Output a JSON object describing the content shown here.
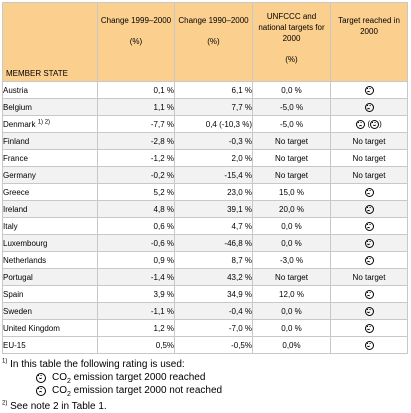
{
  "headers": {
    "member_state": "MEMBER STATE",
    "col2": {
      "title": "Change 1999–2000",
      "unit": "(%)"
    },
    "col3": {
      "title": "Change 1990–2000",
      "unit": "(%)"
    },
    "col4": {
      "title": "UNFCCC and national targets for 2000",
      "unit": "(%)"
    },
    "col5": {
      "title": "Target reached in 2000"
    }
  },
  "rows": [
    {
      "country": "Austria",
      "sup": "",
      "c1": "0,1 %",
      "c2": "6,1 %",
      "c3": "0,0 %",
      "c4_text": "",
      "c4_icon": "sad"
    },
    {
      "country": "Belgium",
      "sup": "",
      "c1": "1,1 %",
      "c2": "7,7 %",
      "c3": "-5,0 %",
      "c4_text": "",
      "c4_icon": "sad"
    },
    {
      "country": "Denmark",
      "sup": "1) 2)",
      "c1": "-7,7 %",
      "c2": "0,4 (-10,3 %)",
      "c3": "-5,0 %",
      "c4_text": "",
      "c4_icon": "sad-happy"
    },
    {
      "country": "Finland",
      "sup": "",
      "c1": "-2,8 %",
      "c2": "-0,3 %",
      "c3": "No target",
      "c4_text": "No target",
      "c4_icon": ""
    },
    {
      "country": "France",
      "sup": "",
      "c1": "-1,2 %",
      "c2": "2,0 %",
      "c3": "No target",
      "c4_text": "No target",
      "c4_icon": ""
    },
    {
      "country": "Germany",
      "sup": "",
      "c1": "-0,2 %",
      "c2": "-15,4 %",
      "c3": "No target",
      "c4_text": "No target",
      "c4_icon": ""
    },
    {
      "country": "Greece",
      "sup": "",
      "c1": "5,2 %",
      "c2": "23,0 %",
      "c3": "15,0 %",
      "c4_text": "",
      "c4_icon": "sad"
    },
    {
      "country": "Ireland",
      "sup": "",
      "c1": "4,8 %",
      "c2": "39,1 %",
      "c3": "20,0 %",
      "c4_text": "",
      "c4_icon": "sad"
    },
    {
      "country": "Italy",
      "sup": "",
      "c1": "0,6 %",
      "c2": "4,7 %",
      "c3": "0,0 %",
      "c4_text": "",
      "c4_icon": "sad"
    },
    {
      "country": "Luxembourg",
      "sup": "",
      "c1": "-0,6 %",
      "c2": "-46,8 %",
      "c3": "0,0 %",
      "c4_text": "",
      "c4_icon": "happy"
    },
    {
      "country": "Netherlands",
      "sup": "",
      "c1": "0,9 %",
      "c2": "8,7 %",
      "c3": "-3,0 %",
      "c4_text": "",
      "c4_icon": "sad"
    },
    {
      "country": "Portugal",
      "sup": "",
      "c1": "-1,4 %",
      "c2": "43,2 %",
      "c3": "No target",
      "c4_text": "No target",
      "c4_icon": ""
    },
    {
      "country": "Spain",
      "sup": "",
      "c1": "3,9 %",
      "c2": "34,9 %",
      "c3": "12,0 %",
      "c4_text": "",
      "c4_icon": "sad"
    },
    {
      "country": "Sweden",
      "sup": "",
      "c1": "-1,1 %",
      "c2": "-0,4 %",
      "c3": "0,0 %",
      "c4_text": "",
      "c4_icon": "happy"
    },
    {
      "country": "United Kingdom",
      "sup": "",
      "c1": "1,2 %",
      "c2": "-7,0 %",
      "c3": "0,0 %",
      "c4_text": "",
      "c4_icon": "happy"
    },
    {
      "country": "EU-15",
      "sup": "",
      "c1": "0,5%",
      "c2": "-0,5%",
      "c3": "0,0%",
      "c4_text": "",
      "c4_icon": "happy-bold"
    }
  ],
  "notes": {
    "note1_sup": "1)",
    "note1_text": "In this table the following rating is used:",
    "legend_happy_pre": "CO",
    "legend_happy_sub": "2",
    "legend_happy_post": " emission target 2000 reached",
    "legend_sad_pre": "CO",
    "legend_sad_sub": "2",
    "legend_sad_post": " emission target 2000 not reached",
    "note2_sup": "2)",
    "note2_text": "See note 2 in Table 1."
  }
}
